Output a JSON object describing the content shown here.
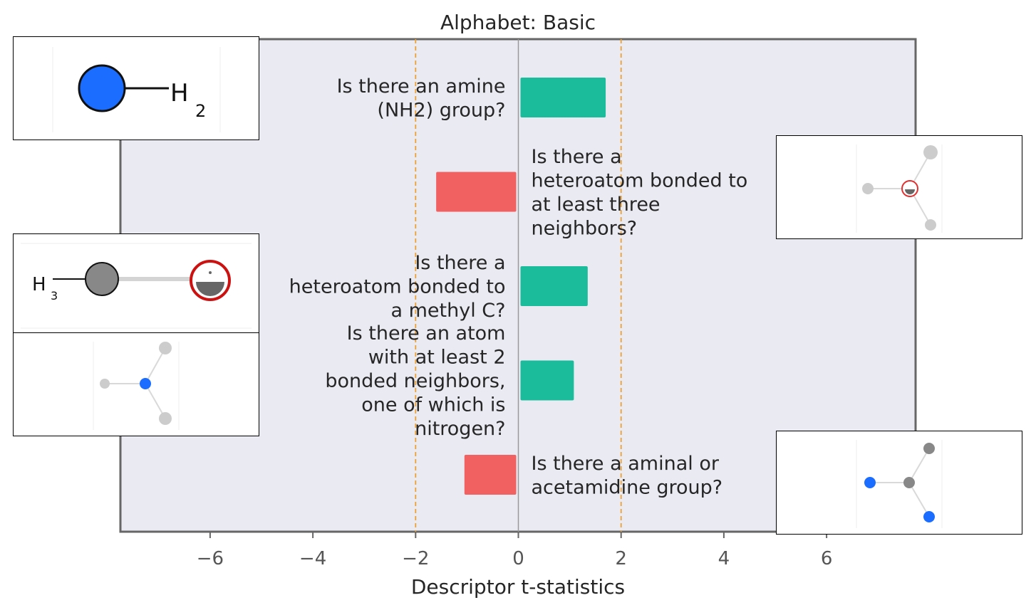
{
  "chart_data": {
    "type": "bar",
    "orientation": "horizontal",
    "title": "Alphabet: Basic",
    "xlabel": "Descriptor t-statistics",
    "ylabel": "",
    "xlim": [
      -7.8,
      7.8
    ],
    "xticks": [
      -6,
      -4,
      -2,
      0,
      2,
      4,
      6
    ],
    "xtick_labels": [
      "−6",
      "−4",
      "−2",
      "0",
      "2",
      "4",
      "6"
    ],
    "significance_lines": [
      -2,
      2
    ],
    "grid": false,
    "categories": [
      "Is there an amine (NH2) group?",
      "Is there a heteroatom bonded to at least three neighbors?",
      "Is there a heteroatom bonded to a methyl C?",
      "Is there an atom with at least 2 bonded neighbors, one of which is nitrogen?",
      "Is there a aminal or acetamidine group?"
    ],
    "label_lines": [
      [
        "Is there an amine",
        "(NH2) group?"
      ],
      [
        "Is there a",
        "heteroatom bonded to",
        "at least three",
        "neighbors?"
      ],
      [
        "Is there a",
        "heteroatom bonded to",
        "a methyl C?"
      ],
      [
        "Is there an atom",
        "with at least 2",
        "bonded neighbors,",
        "one of which is",
        "nitrogen?"
      ],
      [
        "Is there a aminal or",
        "acetamidine group?"
      ]
    ],
    "values": [
      1.7,
      -1.6,
      1.35,
      1.08,
      -1.05
    ],
    "colors": {
      "positive": "#1abc9c",
      "negative": "#f16161",
      "plot_background": "#eaeaf2",
      "threshold_line": "#f0a030",
      "zero_line": "#999999",
      "text": "#262626",
      "tick_text": "#555555"
    }
  },
  "molecules": {
    "nh2_label": "H",
    "nh2_sub": "2",
    "methyl_label": "H",
    "methyl_sub": "3"
  }
}
